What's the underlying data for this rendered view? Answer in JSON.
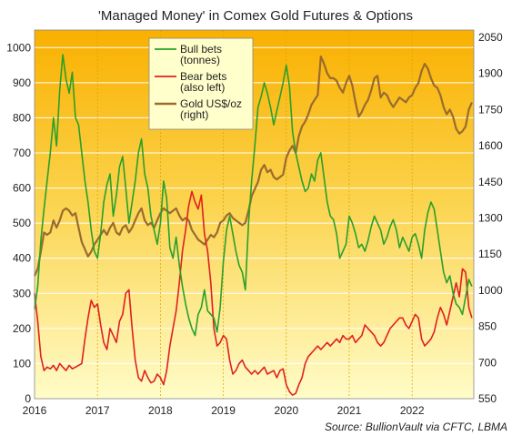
{
  "chart_data": {
    "type": "line",
    "title": "'Managed Money' in Comex Gold Futures & Options",
    "source": "Source: BullionVault via CFTC, LBMA",
    "x_ticks": [
      "2016",
      "2017",
      "2018",
      "2019",
      "2020",
      "2021",
      "2022"
    ],
    "x_range": [
      2016.0,
      2022.98
    ],
    "y_left": {
      "ylim": [
        0,
        1050
      ],
      "ticks": [
        "0",
        "100",
        "200",
        "300",
        "400",
        "500",
        "600",
        "700",
        "800",
        "900",
        "1000"
      ]
    },
    "y_right": {
      "ylim": [
        550,
        2080
      ],
      "ticks": [
        "550",
        "700",
        "850",
        "1000",
        "1150",
        "1300",
        "1450",
        "1600",
        "1750",
        "1900",
        "2050"
      ]
    },
    "background": {
      "top_color": "#f9b000",
      "bottom_color": "#fffcc8"
    },
    "legend": {
      "position": "top-center"
    },
    "series": [
      {
        "name": "Bull bets (tonnes)",
        "legend_lines": [
          "Bull bets",
          "(tonnes)"
        ],
        "axis": "left",
        "color": "#2aa02a",
        "x": [
          2016.0,
          2016.05,
          2016.1,
          2016.15,
          2016.2,
          2016.25,
          2016.3,
          2016.35,
          2016.4,
          2016.45,
          2016.5,
          2016.55,
          2016.6,
          2016.65,
          2016.7,
          2016.75,
          2016.8,
          2016.85,
          2016.9,
          2016.95,
          2017.0,
          2017.05,
          2017.1,
          2017.15,
          2017.2,
          2017.25,
          2017.3,
          2017.35,
          2017.4,
          2017.45,
          2017.5,
          2017.55,
          2017.6,
          2017.65,
          2017.7,
          2017.75,
          2017.8,
          2017.85,
          2017.9,
          2017.95,
          2018.0,
          2018.05,
          2018.1,
          2018.15,
          2018.2,
          2018.25,
          2018.3,
          2018.35,
          2018.4,
          2018.45,
          2018.5,
          2018.55,
          2018.6,
          2018.65,
          2018.7,
          2018.75,
          2018.8,
          2018.85,
          2018.9,
          2018.95,
          2019.0,
          2019.05,
          2019.1,
          2019.15,
          2019.2,
          2019.25,
          2019.3,
          2019.35,
          2019.4,
          2019.45,
          2019.5,
          2019.55,
          2019.6,
          2019.65,
          2019.7,
          2019.75,
          2019.8,
          2019.85,
          2019.9,
          2019.95,
          2020.0,
          2020.05,
          2020.1,
          2020.15,
          2020.2,
          2020.25,
          2020.3,
          2020.35,
          2020.4,
          2020.45,
          2020.5,
          2020.55,
          2020.6,
          2020.65,
          2020.7,
          2020.75,
          2020.8,
          2020.85,
          2020.9,
          2020.95,
          2021.0,
          2021.05,
          2021.1,
          2021.15,
          2021.2,
          2021.25,
          2021.3,
          2021.35,
          2021.4,
          2021.45,
          2021.5,
          2021.55,
          2021.6,
          2021.65,
          2021.7,
          2021.75,
          2021.8,
          2021.85,
          2021.9,
          2021.95,
          2022.0,
          2022.05,
          2022.1,
          2022.15,
          2022.2,
          2022.25,
          2022.3,
          2022.35,
          2022.4,
          2022.45,
          2022.5,
          2022.55,
          2022.6,
          2022.65,
          2022.7,
          2022.75,
          2022.8,
          2022.85,
          2022.9,
          2022.95
        ],
        "values": [
          255,
          320,
          450,
          540,
          620,
          700,
          800,
          720,
          880,
          980,
          910,
          870,
          930,
          800,
          780,
          700,
          620,
          560,
          480,
          420,
          400,
          470,
          560,
          610,
          640,
          520,
          580,
          660,
          690,
          600,
          500,
          560,
          620,
          700,
          740,
          640,
          600,
          520,
          480,
          440,
          500,
          620,
          570,
          430,
          400,
          460,
          380,
          320,
          270,
          230,
          200,
          180,
          240,
          260,
          310,
          250,
          240,
          230,
          190,
          260,
          390,
          480,
          520,
          470,
          420,
          380,
          360,
          310,
          500,
          620,
          720,
          830,
          860,
          900,
          870,
          830,
          780,
          820,
          860,
          900,
          950,
          890,
          760,
          700,
          660,
          620,
          590,
          600,
          640,
          620,
          680,
          700,
          630,
          560,
          520,
          510,
          470,
          400,
          420,
          440,
          520,
          500,
          470,
          430,
          440,
          420,
          450,
          490,
          520,
          500,
          480,
          440,
          460,
          490,
          510,
          480,
          430,
          460,
          440,
          420,
          460,
          470,
          440,
          400,
          480,
          530,
          560,
          540,
          480,
          420,
          360,
          330,
          350,
          300,
          270,
          260,
          240,
          290,
          340,
          320
        ]
      },
      {
        "name": "Bear bets (also left)",
        "legend_lines": [
          "Bear bets",
          "(also left)"
        ],
        "axis": "left",
        "color": "#e02020",
        "x": [
          2016.0,
          2016.05,
          2016.1,
          2016.15,
          2016.2,
          2016.25,
          2016.3,
          2016.35,
          2016.4,
          2016.45,
          2016.5,
          2016.55,
          2016.6,
          2016.65,
          2016.7,
          2016.75,
          2016.8,
          2016.85,
          2016.9,
          2016.95,
          2017.0,
          2017.05,
          2017.1,
          2017.15,
          2017.2,
          2017.25,
          2017.3,
          2017.35,
          2017.4,
          2017.45,
          2017.5,
          2017.55,
          2017.6,
          2017.65,
          2017.7,
          2017.75,
          2017.8,
          2017.85,
          2017.9,
          2017.95,
          2018.0,
          2018.05,
          2018.1,
          2018.15,
          2018.2,
          2018.25,
          2018.3,
          2018.35,
          2018.4,
          2018.45,
          2018.5,
          2018.55,
          2018.6,
          2018.65,
          2018.7,
          2018.75,
          2018.8,
          2018.85,
          2018.9,
          2018.95,
          2019.0,
          2019.05,
          2019.1,
          2019.15,
          2019.2,
          2019.25,
          2019.3,
          2019.35,
          2019.4,
          2019.45,
          2019.5,
          2019.55,
          2019.6,
          2019.65,
          2019.7,
          2019.75,
          2019.8,
          2019.85,
          2019.9,
          2019.95,
          2020.0,
          2020.05,
          2020.1,
          2020.15,
          2020.2,
          2020.25,
          2020.3,
          2020.35,
          2020.4,
          2020.45,
          2020.5,
          2020.55,
          2020.6,
          2020.65,
          2020.7,
          2020.75,
          2020.8,
          2020.85,
          2020.9,
          2020.95,
          2021.0,
          2021.05,
          2021.1,
          2021.15,
          2021.2,
          2021.25,
          2021.3,
          2021.35,
          2021.4,
          2021.45,
          2021.5,
          2021.55,
          2021.6,
          2021.65,
          2021.7,
          2021.75,
          2021.8,
          2021.85,
          2021.9,
          2021.95,
          2022.0,
          2022.05,
          2022.1,
          2022.15,
          2022.2,
          2022.25,
          2022.3,
          2022.35,
          2022.4,
          2022.45,
          2022.5,
          2022.55,
          2022.6,
          2022.65,
          2022.7,
          2022.75,
          2022.8,
          2022.85,
          2022.9,
          2022.95
        ],
        "values": [
          300,
          220,
          120,
          80,
          90,
          85,
          95,
          80,
          100,
          90,
          80,
          95,
          85,
          90,
          95,
          100,
          170,
          230,
          280,
          260,
          270,
          210,
          160,
          140,
          200,
          180,
          160,
          220,
          240,
          300,
          310,
          200,
          110,
          60,
          50,
          80,
          60,
          45,
          50,
          70,
          60,
          40,
          80,
          150,
          200,
          250,
          330,
          420,
          480,
          550,
          590,
          560,
          540,
          580,
          470,
          420,
          330,
          200,
          150,
          160,
          180,
          170,
          110,
          70,
          80,
          100,
          110,
          90,
          80,
          70,
          80,
          70,
          80,
          90,
          70,
          75,
          80,
          60,
          80,
          85,
          40,
          20,
          10,
          15,
          40,
          60,
          100,
          120,
          130,
          140,
          150,
          140,
          150,
          160,
          150,
          160,
          170,
          160,
          180,
          170,
          170,
          180,
          160,
          170,
          180,
          210,
          200,
          190,
          180,
          160,
          150,
          160,
          180,
          200,
          210,
          220,
          230,
          230,
          210,
          200,
          220,
          240,
          230,
          170,
          150,
          160,
          170,
          190,
          230,
          260,
          240,
          210,
          250,
          290,
          330,
          290,
          370,
          360,
          260,
          230
        ]
      },
      {
        "name": "Gold US$/oz (right)",
        "legend_lines": [
          "Gold US$/oz",
          "(right)"
        ],
        "axis": "right",
        "color": "#9a6b2e",
        "x": [
          2016.0,
          2016.05,
          2016.1,
          2016.15,
          2016.2,
          2016.25,
          2016.3,
          2016.35,
          2016.4,
          2016.45,
          2016.5,
          2016.55,
          2016.6,
          2016.65,
          2016.7,
          2016.75,
          2016.8,
          2016.85,
          2016.9,
          2016.95,
          2017.0,
          2017.05,
          2017.1,
          2017.15,
          2017.2,
          2017.25,
          2017.3,
          2017.35,
          2017.4,
          2017.45,
          2017.5,
          2017.55,
          2017.6,
          2017.65,
          2017.7,
          2017.75,
          2017.8,
          2017.85,
          2017.9,
          2017.95,
          2018.0,
          2018.05,
          2018.1,
          2018.15,
          2018.2,
          2018.25,
          2018.3,
          2018.35,
          2018.4,
          2018.45,
          2018.5,
          2018.55,
          2018.6,
          2018.65,
          2018.7,
          2018.75,
          2018.8,
          2018.85,
          2018.9,
          2018.95,
          2019.0,
          2019.05,
          2019.1,
          2019.15,
          2019.2,
          2019.25,
          2019.3,
          2019.35,
          2019.4,
          2019.45,
          2019.5,
          2019.55,
          2019.6,
          2019.65,
          2019.7,
          2019.75,
          2019.8,
          2019.85,
          2019.9,
          2019.95,
          2020.0,
          2020.05,
          2020.1,
          2020.15,
          2020.2,
          2020.25,
          2020.3,
          2020.35,
          2020.4,
          2020.45,
          2020.5,
          2020.55,
          2020.6,
          2020.65,
          2020.7,
          2020.75,
          2020.8,
          2020.85,
          2020.9,
          2020.95,
          2021.0,
          2021.05,
          2021.1,
          2021.15,
          2021.2,
          2021.25,
          2021.3,
          2021.35,
          2021.4,
          2021.45,
          2021.5,
          2021.55,
          2021.6,
          2021.65,
          2021.7,
          2021.75,
          2021.8,
          2021.85,
          2021.9,
          2021.95,
          2022.0,
          2022.05,
          2022.1,
          2022.15,
          2022.2,
          2022.25,
          2022.3,
          2022.35,
          2022.4,
          2022.45,
          2022.5,
          2022.55,
          2022.6,
          2022.65,
          2022.7,
          2022.75,
          2022.8,
          2022.85,
          2022.9,
          2022.95
        ],
        "values": [
          1060,
          1090,
          1160,
          1240,
          1230,
          1240,
          1290,
          1260,
          1290,
          1330,
          1340,
          1330,
          1310,
          1320,
          1260,
          1200,
          1170,
          1140,
          1160,
          1190,
          1210,
          1230,
          1250,
          1230,
          1260,
          1280,
          1240,
          1230,
          1260,
          1270,
          1240,
          1260,
          1290,
          1320,
          1340,
          1290,
          1270,
          1280,
          1260,
          1290,
          1320,
          1340,
          1330,
          1320,
          1330,
          1340,
          1310,
          1290,
          1300,
          1290,
          1250,
          1230,
          1210,
          1200,
          1190,
          1210,
          1230,
          1220,
          1240,
          1280,
          1290,
          1310,
          1320,
          1300,
          1290,
          1280,
          1270,
          1280,
          1330,
          1390,
          1420,
          1450,
          1500,
          1520,
          1490,
          1500,
          1470,
          1460,
          1470,
          1480,
          1550,
          1580,
          1600,
          1570,
          1640,
          1680,
          1700,
          1730,
          1770,
          1790,
          1810,
          1970,
          1940,
          1900,
          1880,
          1880,
          1870,
          1840,
          1820,
          1860,
          1890,
          1850,
          1780,
          1720,
          1740,
          1770,
          1790,
          1830,
          1880,
          1890,
          1800,
          1820,
          1810,
          1780,
          1760,
          1780,
          1800,
          1790,
          1780,
          1800,
          1810,
          1840,
          1860,
          1910,
          1940,
          1920,
          1880,
          1850,
          1840,
          1810,
          1760,
          1730,
          1750,
          1720,
          1670,
          1650,
          1660,
          1680,
          1750,
          1780
        ]
      }
    ]
  }
}
